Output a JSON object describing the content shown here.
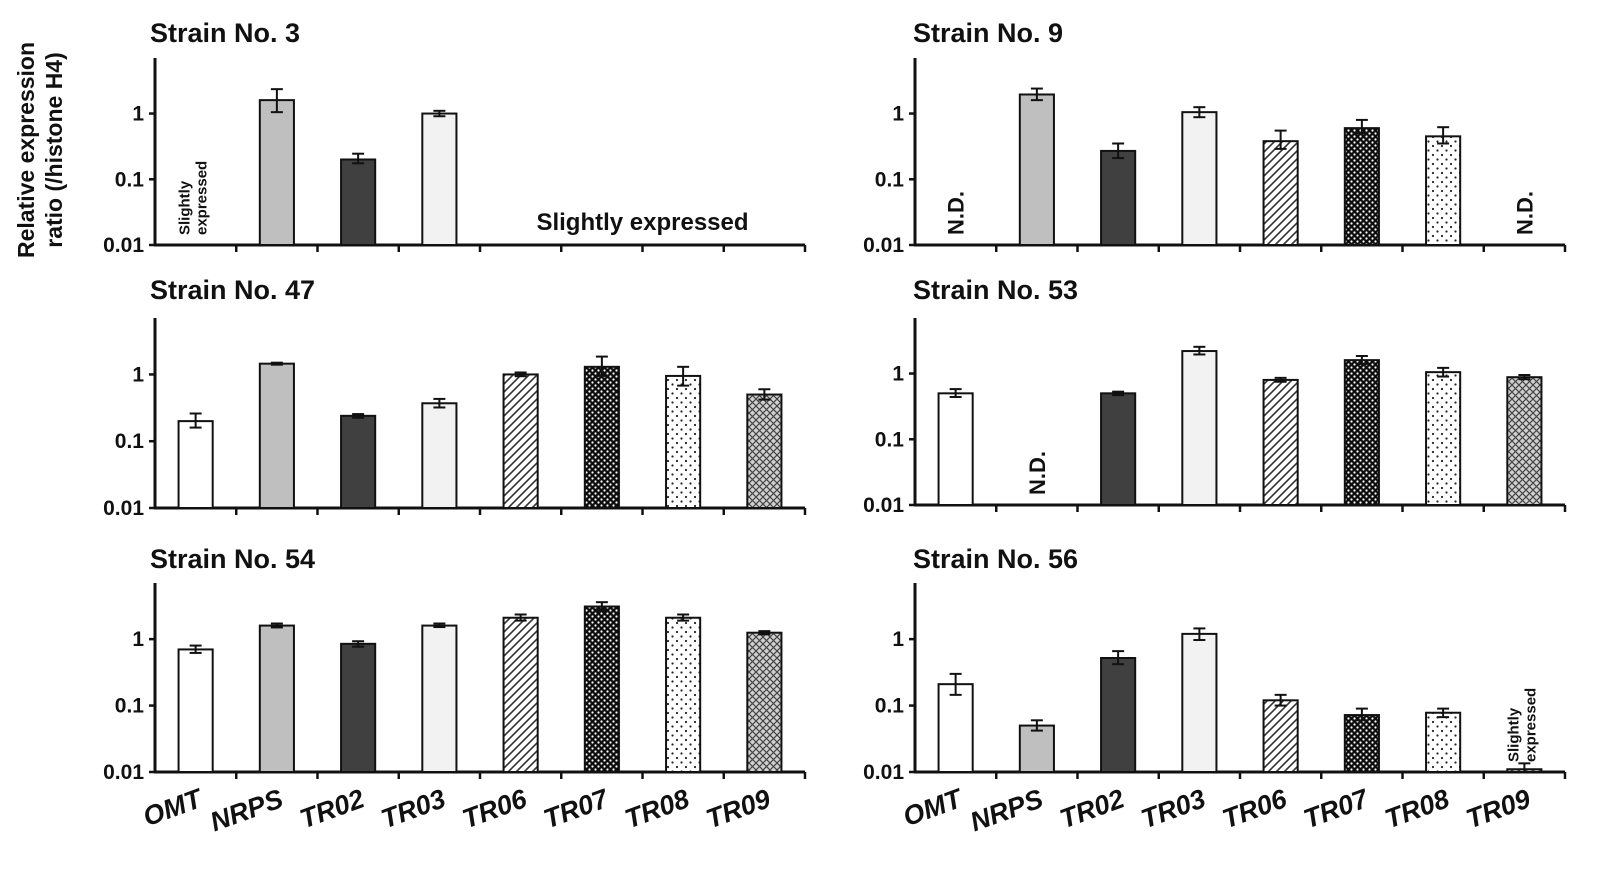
{
  "y_axis_label": [
    "Relative expression",
    "ratio (/histone H4)"
  ],
  "colors": {
    "OMT": "#ffffff",
    "NRPS": "#bfbfbf",
    "TR02": "#404040",
    "TR03": "#f2f2f2",
    "edge": "#111111"
  },
  "chart_data": [
    {
      "type": "bar",
      "title": "Strain No. 3",
      "scale": "log",
      "ylim": [
        0.01,
        7
      ],
      "yticks": [
        "0.01",
        "0.1",
        "1"
      ],
      "categories": [
        "OMT",
        "NRPS",
        "TR02",
        "TR03",
        "TR06",
        "TR07",
        "TR08",
        "TR09"
      ],
      "values": [
        null,
        1.6,
        0.2,
        1.0,
        null,
        null,
        null,
        null
      ],
      "errors": [
        null,
        [
          1.05,
          2.35
        ],
        [
          0.175,
          0.245
        ],
        [
          0.91,
          1.1
        ],
        null,
        null,
        null,
        null
      ],
      "annotations": [
        {
          "text": [
            "Slightly",
            "expressed"
          ],
          "category": "OMT",
          "orientation": "vertical"
        },
        {
          "text": [
            "Slightly expressed"
          ],
          "category_span": [
            "TR06",
            "TR09"
          ],
          "orientation": "horizontal"
        }
      ]
    },
    {
      "type": "bar",
      "title": "Strain No. 9",
      "scale": "log",
      "ylim": [
        0.01,
        7
      ],
      "yticks": [
        "0.01",
        "0.1",
        "1"
      ],
      "categories": [
        "OMT",
        "NRPS",
        "TR02",
        "TR03",
        "TR06",
        "TR07",
        "TR08",
        "TR09"
      ],
      "values": [
        null,
        1.95,
        0.27,
        1.05,
        0.38,
        0.6,
        0.45,
        null
      ],
      "errors": [
        null,
        [
          1.6,
          2.4
        ],
        [
          0.21,
          0.35
        ],
        [
          0.88,
          1.25
        ],
        [
          0.29,
          0.55
        ],
        [
          0.5,
          0.8
        ],
        [
          0.35,
          0.62
        ],
        null
      ],
      "annotations": [
        {
          "text": [
            "N.D."
          ],
          "category": "OMT",
          "orientation": "vertical"
        },
        {
          "text": [
            "N.D."
          ],
          "category": "TR09",
          "orientation": "vertical"
        }
      ]
    },
    {
      "type": "bar",
      "title": "Strain No. 47",
      "scale": "log",
      "ylim": [
        0.01,
        7
      ],
      "yticks": [
        "0.01",
        "0.1",
        "1"
      ],
      "categories": [
        "OMT",
        "NRPS",
        "TR02",
        "TR03",
        "TR06",
        "TR07",
        "TR08",
        "TR09"
      ],
      "values": [
        0.2,
        1.45,
        0.24,
        0.37,
        1.0,
        1.3,
        0.95,
        0.5
      ],
      "errors": [
        [
          0.16,
          0.26
        ],
        [
          1.4,
          1.5
        ],
        [
          0.225,
          0.255
        ],
        [
          0.32,
          0.43
        ],
        [
          0.94,
          1.07
        ],
        [
          0.95,
          1.85
        ],
        [
          0.68,
          1.3
        ],
        [
          0.42,
          0.6
        ]
      ],
      "annotations": []
    },
    {
      "type": "bar",
      "title": "Strain No. 53",
      "scale": "log",
      "ylim": [
        0.01,
        7
      ],
      "yticks": [
        "0.01",
        "0.1",
        "1"
      ],
      "categories": [
        "OMT",
        "NRPS",
        "TR02",
        "TR03",
        "TR06",
        "TR07",
        "TR08",
        "TR09"
      ],
      "values": [
        0.5,
        null,
        0.5,
        2.2,
        0.8,
        1.6,
        1.05,
        0.88
      ],
      "errors": [
        [
          0.44,
          0.58
        ],
        null,
        [
          0.47,
          0.53
        ],
        [
          1.95,
          2.55
        ],
        [
          0.75,
          0.86
        ],
        [
          1.4,
          1.85
        ],
        [
          0.9,
          1.22
        ],
        [
          0.82,
          0.95
        ]
      ],
      "annotations": [
        {
          "text": [
            "N.D."
          ],
          "category": "NRPS",
          "orientation": "vertical"
        }
      ]
    },
    {
      "type": "bar",
      "title": "Strain No. 54",
      "scale": "log",
      "ylim": [
        0.01,
        7
      ],
      "yticks": [
        "0.01",
        "0.1",
        "1"
      ],
      "categories": [
        "OMT",
        "NRPS",
        "TR02",
        "TR03",
        "TR06",
        "TR07",
        "TR08",
        "TR09"
      ],
      "values": [
        0.7,
        1.6,
        0.85,
        1.6,
        2.1,
        3.1,
        2.1,
        1.25
      ],
      "errors": [
        [
          0.62,
          0.8
        ],
        [
          1.5,
          1.72
        ],
        [
          0.77,
          0.93
        ],
        [
          1.52,
          1.72
        ],
        [
          1.9,
          2.35
        ],
        [
          2.7,
          3.6
        ],
        [
          1.9,
          2.35
        ],
        [
          1.18,
          1.32
        ]
      ],
      "annotations": []
    },
    {
      "type": "bar",
      "title": "Strain No. 56",
      "scale": "log",
      "ylim": [
        0.01,
        7
      ],
      "yticks": [
        "0.01",
        "0.1",
        "1"
      ],
      "categories": [
        "OMT",
        "NRPS",
        "TR02",
        "TR03",
        "TR06",
        "TR07",
        "TR08",
        "TR09"
      ],
      "values": [
        0.21,
        0.05,
        0.52,
        1.2,
        0.12,
        0.072,
        0.078,
        0.011
      ],
      "errors": [
        [
          0.145,
          0.3
        ],
        [
          0.042,
          0.06
        ],
        [
          0.42,
          0.66
        ],
        [
          0.97,
          1.45
        ],
        [
          0.1,
          0.145
        ],
        [
          0.06,
          0.09
        ],
        [
          0.067,
          0.09
        ],
        [
          0.01,
          0.0135
        ]
      ],
      "annotations": [
        {
          "text": [
            "Slightly",
            "expressed"
          ],
          "category": "TR09",
          "orientation": "vertical"
        }
      ]
    }
  ]
}
